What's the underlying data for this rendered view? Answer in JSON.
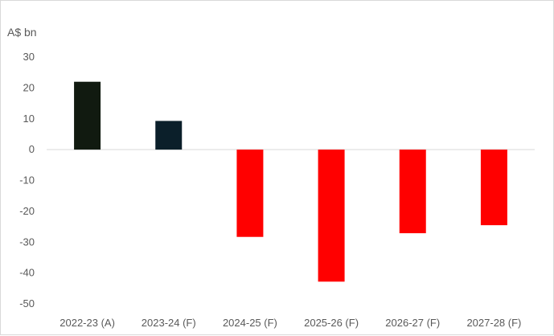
{
  "chart_data": {
    "type": "bar",
    "unit_label": "A$ bn",
    "categories": [
      "2022-23 (A)",
      "2023-24 (F)",
      "2024-25 (F)",
      "2025-26 (F)",
      "2026-27 (F)",
      "2027-28 (F)"
    ],
    "values": [
      22,
      9.3,
      -28.3,
      -42.8,
      -27.1,
      -24.5
    ],
    "bar_colors": [
      "#111a10",
      "#0b1f2a",
      "#ff0000",
      "#ff0000",
      "#ff0000",
      "#ff0000"
    ],
    "ylim": [
      -50,
      30
    ],
    "yticks": [
      30,
      20,
      10,
      0,
      -10,
      -20,
      -30,
      -40,
      -50
    ],
    "grid": false,
    "legend": "none"
  }
}
